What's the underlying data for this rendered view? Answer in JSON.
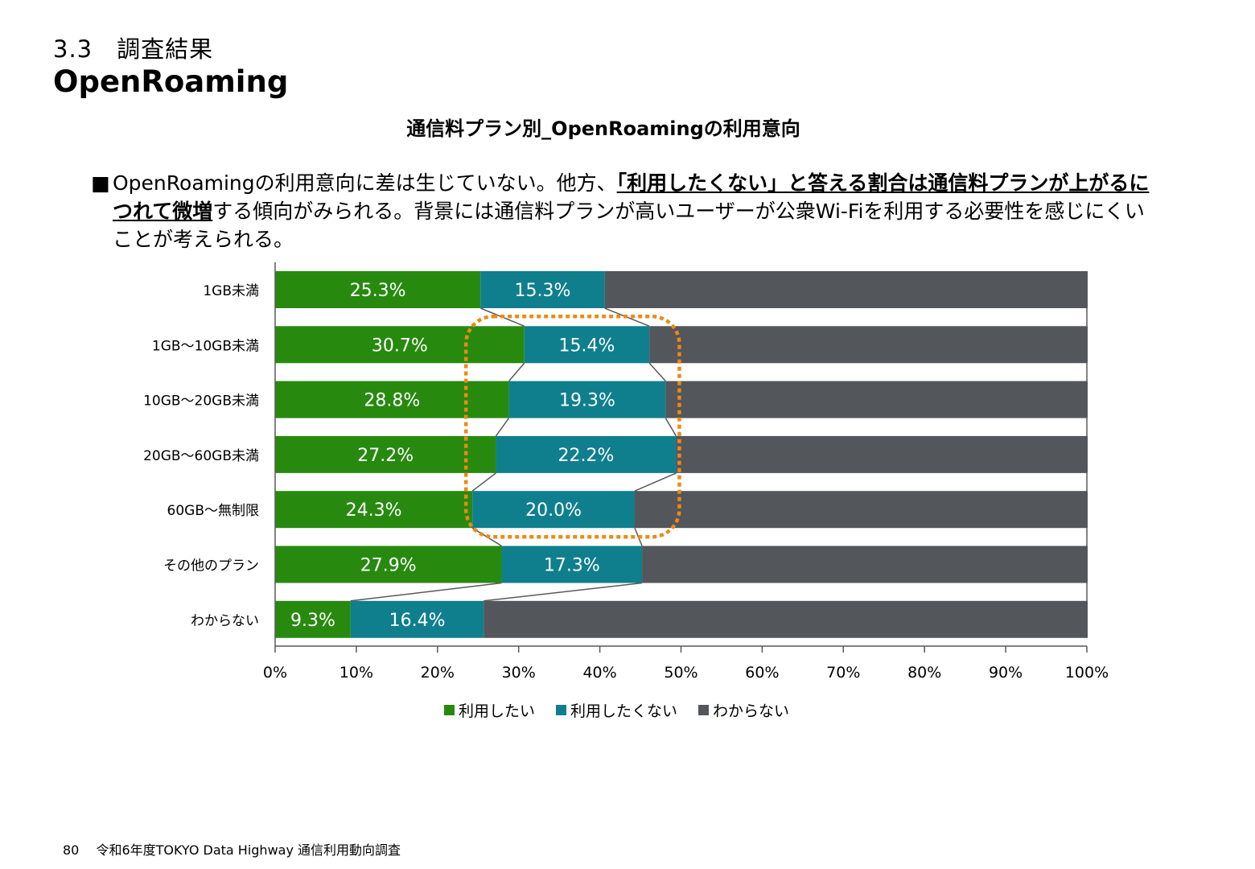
{
  "header": {
    "section": "3.3　調査結果",
    "title": "OpenRoaming"
  },
  "bullet": {
    "marker": "■",
    "pre": "OpenRoamingの利用意向に差は生じていない。他方、",
    "emph": "「利用したくない」と答える割合は通信料プランが上がるにつれて微増",
    "post": "する傾向がみられる。背景には通信料プランが高いユーザーが公衆Wi-Fiを利用する必要性を感じにくいことが考えられる。"
  },
  "chart_data": {
    "type": "bar",
    "orientation": "horizontal",
    "stacked": true,
    "title": "通信料プラン別_OpenRoamingの利用意向",
    "categories": [
      "1GB未満",
      "1GB～10GB未満",
      "10GB～20GB未満",
      "20GB～60GB未満",
      "60GB～無制限",
      "その他のプラン",
      "わからない"
    ],
    "series": [
      {
        "name": "利用したい",
        "color": "#278a0f",
        "values": [
          25.3,
          30.7,
          28.8,
          27.2,
          24.3,
          27.9,
          9.3
        ],
        "labels": [
          "25.3%",
          "30.7%",
          "28.8%",
          "27.2%",
          "24.3%",
          "27.9%",
          "9.3%"
        ]
      },
      {
        "name": "利用したくない",
        "color": "#0f7f8e",
        "values": [
          15.3,
          15.4,
          19.3,
          22.2,
          20.0,
          17.3,
          16.4
        ],
        "labels": [
          "15.3%",
          "15.4%",
          "19.3%",
          "22.2%",
          "20.0%",
          "17.3%",
          "16.4%"
        ]
      },
      {
        "name": "わからない",
        "color": "#53565a",
        "values": [
          59.4,
          53.9,
          51.9,
          50.6,
          55.7,
          54.8,
          74.3
        ]
      }
    ],
    "xlim": [
      0,
      100
    ],
    "xticks": [
      "0%",
      "10%",
      "20%",
      "30%",
      "40%",
      "50%",
      "60%",
      "70%",
      "80%",
      "90%",
      "100%"
    ],
    "legend_position": "bottom",
    "series_lines": true,
    "highlight": {
      "rows": [
        "1GB～10GB未満",
        "10GB～20GB未満",
        "20GB～60GB未満",
        "60GB～無制限"
      ],
      "color": "#ec8a14",
      "style": "dotted rounded box"
    }
  },
  "footer": {
    "page": "80",
    "text": "令和6年度TOKYO Data Highway 通信利用動向調査"
  }
}
